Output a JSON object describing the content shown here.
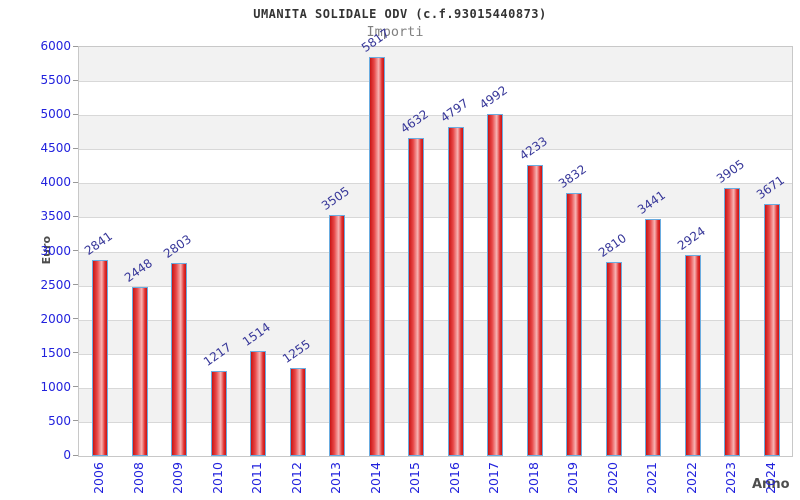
{
  "chart_data": {
    "type": "bar",
    "title": "UMANITA SOLIDALE ODV (c.f.93015440873)",
    "subtitle": "Importi",
    "xlabel": "Anno",
    "ylabel": "Euro",
    "categories": [
      "2006",
      "2008",
      "2009",
      "2010",
      "2011",
      "2012",
      "2013",
      "2014",
      "2015",
      "2016",
      "2017",
      "2018",
      "2019",
      "2020",
      "2021",
      "2022",
      "2023",
      "2024"
    ],
    "values": [
      2841,
      2448,
      2803,
      1217,
      1514,
      1255,
      3505,
      5817,
      4632,
      4797,
      4992,
      4233,
      3832,
      2810,
      3441,
      2924,
      3905,
      3671
    ],
    "ylim": [
      0,
      6000
    ],
    "ytick_step": 500,
    "ytick_labels": [
      "0",
      "500",
      "1000",
      "1500",
      "2000",
      "2500",
      "3000",
      "3500",
      "4000",
      "4500",
      "5000",
      "5500",
      "6000"
    ],
    "legend": "none",
    "grid": "horizontal-bands-alternating",
    "bar_value_labels_rotated_deg": -35,
    "x_labels_rotated_deg": -90,
    "colors": {
      "bar_fill_dark": "#c81414",
      "bar_fill_light": "#f7b4b4",
      "bar_border": "#6aace0",
      "axis_tick_text": "#2222dd",
      "value_label_text": "#373799",
      "band_gray": "#f2f2f2",
      "band_white": "#ffffff",
      "gridline": "#d8d8d8",
      "plot_border": "#c8c8c8",
      "title_text": "#333333",
      "subtitle_text": "#808080",
      "axis_title_text": "#4d4d4d"
    }
  }
}
